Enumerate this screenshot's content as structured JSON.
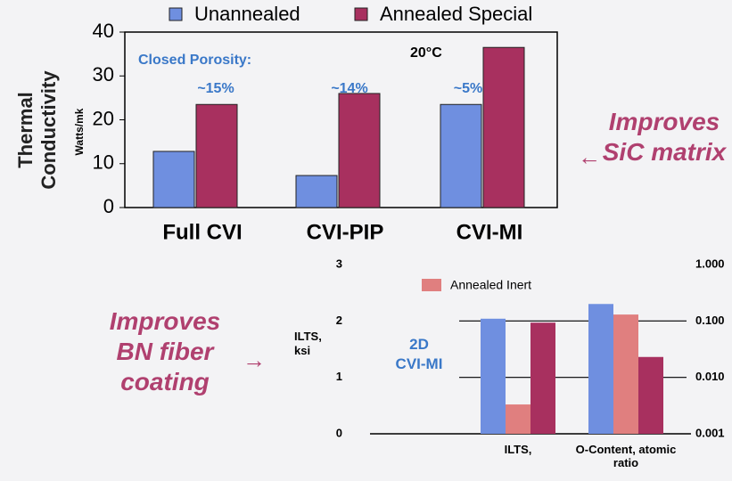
{
  "chart_data": [
    {
      "type": "bar",
      "y_label": "Thermal Conductivity",
      "y_unit": "Watts/mk",
      "annotations": [
        "Closed Porosity:",
        "~15%",
        "~14%",
        "~5%",
        "20°C"
      ],
      "categories": [
        "Full CVI",
        "CVI-PIP",
        "CVI-MI"
      ],
      "series": [
        {
          "name": "Unannealed",
          "color": "#6f8fe0",
          "values": [
            12.8,
            7.3,
            23.5
          ]
        },
        {
          "name": "Annealed Special",
          "color": "#a8305f",
          "values": [
            23.5,
            26,
            36.5
          ]
        }
      ],
      "ylim": [
        0,
        40
      ],
      "yticks": [
        0,
        10,
        20,
        30,
        40
      ],
      "legend": "top"
    },
    {
      "type": "bar",
      "y_label": "ILTS, ksi",
      "annotations": [
        "2D CVI-MI"
      ],
      "categories": [
        "ILTS,",
        "O-Content, atomic ratio"
      ],
      "category_axes": [
        "y",
        "y2"
      ],
      "series": [
        {
          "color": "#6f8fe0",
          "values": [
            2.04,
            0.2
          ]
        },
        {
          "name": "Annealed Inert",
          "color": "#e07f7f",
          "values": [
            0.52,
            0.13
          ]
        },
        {
          "color": "#a8305f",
          "values": [
            1.97,
            0.023
          ]
        }
      ],
      "ylim": [
        0,
        3
      ],
      "yticks": [
        0,
        1,
        2,
        3
      ],
      "y2lim": [
        0.001,
        1
      ],
      "y2log": true,
      "y2ticks": [
        {
          "value": 1,
          "label": "1.000"
        },
        {
          "value": 0.1,
          "label": "0.100"
        },
        {
          "value": 0.01,
          "label": "0.010"
        },
        {
          "value": 0.001,
          "label": "0.001"
        }
      ],
      "grid": true
    }
  ],
  "side_notes": [
    "Improves SiC matrix",
    "Improves BN fiber coating"
  ]
}
